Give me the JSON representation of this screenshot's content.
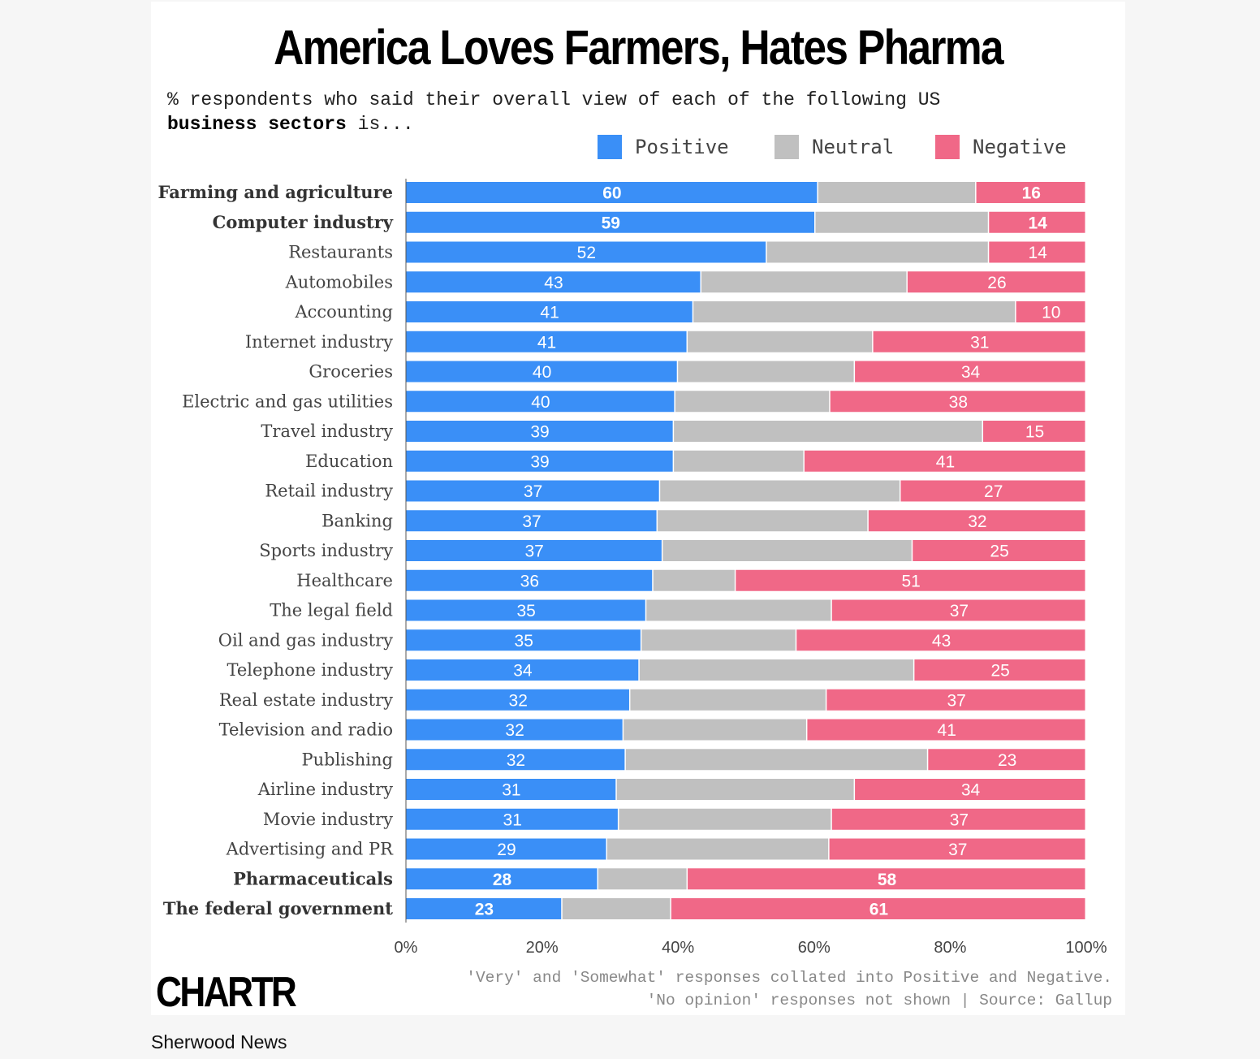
{
  "title": "America Loves Farmers, Hates Pharma",
  "subtitle_plain": "% respondents who said their overall view of each of the following US",
  "subtitle_bold": "business sectors",
  "subtitle_end": " is...",
  "legend": [
    {
      "label": "Positive",
      "color": "#3a8ff7"
    },
    {
      "label": "Neutral",
      "color": "#c0c0c0"
    },
    {
      "label": "Negative",
      "color": "#f06887"
    }
  ],
  "chart_data": {
    "type": "bar",
    "orientation": "horizontal",
    "stacked": true,
    "categories": [
      "Farming and agriculture",
      "Computer industry",
      "Restaurants",
      "Automobiles",
      "Accounting",
      "Internet industry",
      "Groceries",
      "Electric and gas utilities",
      "Travel industry",
      "Education",
      "Retail industry",
      "Banking",
      "Sports industry",
      "Healthcare",
      "The legal field",
      "Oil and gas industry",
      "Telephone industry",
      "Real estate industry",
      "Television and radio",
      "Publishing",
      "Airline industry",
      "Movie industry",
      "Advertising and PR",
      "Pharmaceuticals",
      "The federal government"
    ],
    "bold_categories": [
      "Farming and agriculture",
      "Computer industry",
      "Pharmaceuticals",
      "The federal government"
    ],
    "series": [
      {
        "name": "Positive",
        "values": [
          60,
          59,
          52,
          43,
          41,
          41,
          40,
          40,
          39,
          39,
          37,
          37,
          37,
          36,
          35,
          35,
          34,
          32,
          32,
          32,
          31,
          31,
          29,
          28,
          23
        ]
      },
      {
        "name": "Neutral",
        "values": [
          23,
          25,
          32,
          30,
          46,
          27,
          26,
          23,
          45,
          19,
          35,
          31,
          36,
          12,
          27,
          23,
          40,
          28,
          27,
          44,
          35,
          31,
          32,
          13,
          16
        ]
      },
      {
        "name": "Negative",
        "values": [
          16,
          14,
          14,
          26,
          10,
          31,
          34,
          38,
          15,
          41,
          27,
          32,
          25,
          51,
          37,
          43,
          25,
          37,
          41,
          23,
          34,
          37,
          37,
          58,
          61
        ]
      }
    ],
    "xlim": [
      0,
      100
    ],
    "xticks": [
      "0%",
      "20%",
      "40%",
      "60%",
      "80%",
      "100%"
    ],
    "legend_position": "top-right"
  },
  "footnote": [
    "'Very' and 'Somewhat' responses collated into Positive and Negative.",
    "'No opinion' responses not shown | Source: Gallup"
  ],
  "logo": "CHARTR",
  "brand": "Sherwood News"
}
